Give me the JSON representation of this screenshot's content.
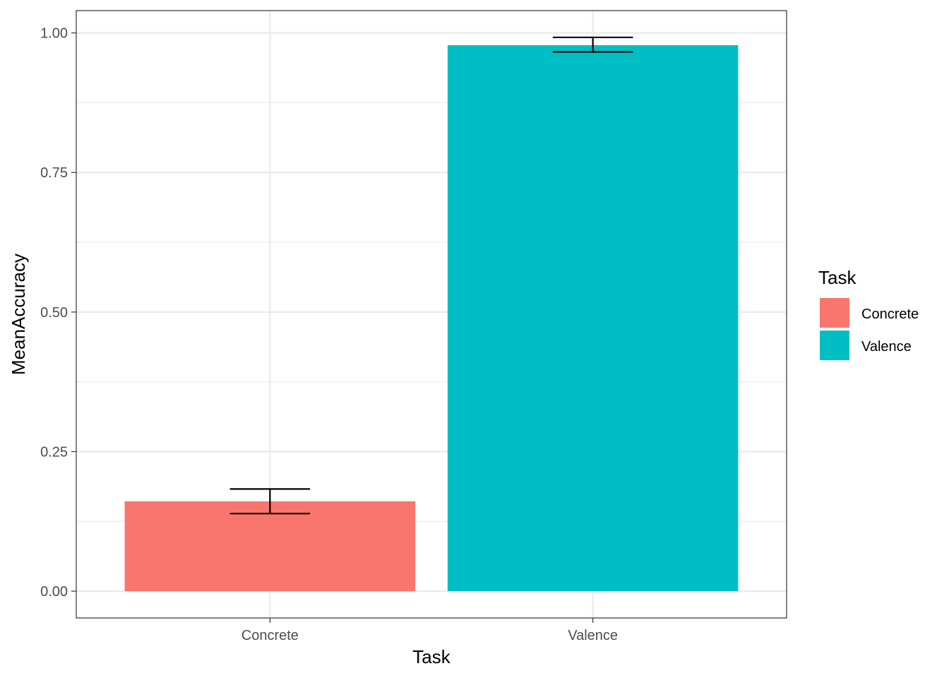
{
  "chart_data": {
    "type": "bar",
    "categories": [
      "Concrete",
      "Valence"
    ],
    "values": [
      0.161,
      0.978
    ],
    "error_bars": [
      {
        "lower": 0.139,
        "upper": 0.183
      },
      {
        "lower": 0.966,
        "upper": 0.992
      }
    ],
    "colors": [
      "#F8766D",
      "#00BFC4"
    ],
    "xlabel": "Task",
    "ylabel": "MeanAccuracy",
    "ylim": [
      -0.048,
      1.04
    ],
    "yticks": [
      0.0,
      0.25,
      0.5,
      0.75,
      1.0
    ],
    "ytick_labels": [
      "0.00",
      "0.25",
      "0.50",
      "0.75",
      "1.00"
    ],
    "grid": true,
    "legend": {
      "title": "Task",
      "placement": "right",
      "entries": [
        "Concrete",
        "Valence"
      ]
    }
  }
}
